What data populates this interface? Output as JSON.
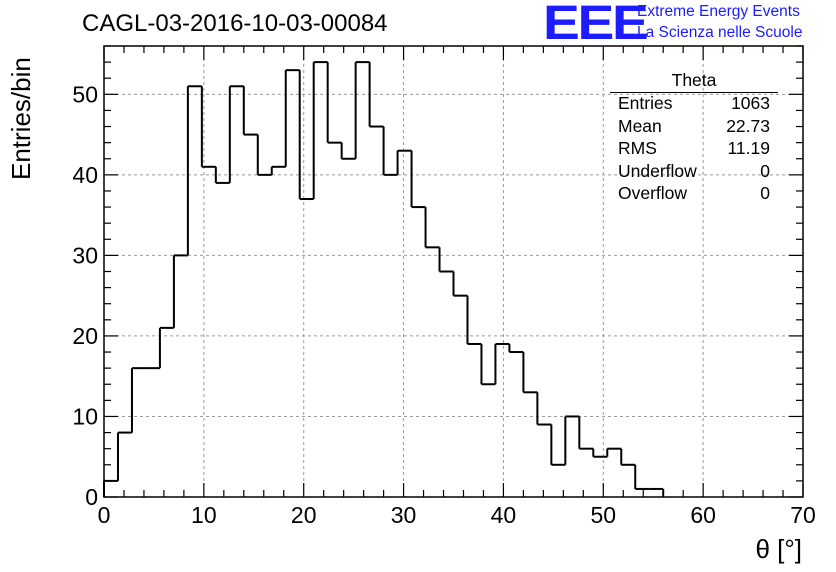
{
  "header": {
    "title": "CAGL-03-2016-10-03-00084",
    "logo_text": "EEE",
    "logo_line1": "Extreme Energy Events",
    "logo_line2": "La Scienza nelle Scuole"
  },
  "stats_box": {
    "title": "Theta",
    "rows": [
      {
        "label": "Entries",
        "value": "1063"
      },
      {
        "label": "Mean",
        "value": "22.73"
      },
      {
        "label": "RMS",
        "value": "11.19"
      },
      {
        "label": "Underflow",
        "value": "0"
      },
      {
        "label": "Overflow",
        "value": "0"
      }
    ]
  },
  "chart_data": {
    "type": "bar",
    "title": "CAGL-03-2016-10-03-00084",
    "xlabel": "θ [°]",
    "ylabel": "Entries/bin",
    "xlim": [
      0,
      70
    ],
    "ylim": [
      0,
      56
    ],
    "bin_width": 1.4,
    "grid": true,
    "x_ticks": [
      0,
      10,
      20,
      30,
      40,
      50,
      60,
      70
    ],
    "y_ticks": [
      0,
      10,
      20,
      30,
      40,
      50
    ],
    "values": [
      2,
      8,
      16,
      16,
      21,
      30,
      51,
      41,
      39,
      51,
      45,
      40,
      41,
      53,
      37,
      54,
      44,
      42,
      54,
      46,
      40,
      43,
      36,
      31,
      28,
      25,
      19,
      14,
      19,
      18,
      13,
      9,
      4,
      10,
      6,
      5,
      6,
      4,
      1,
      1,
      0,
      0,
      0,
      0,
      0,
      0,
      0,
      0,
      0,
      0
    ],
    "line_color": "#000000",
    "grid_color": "#9a9a9a"
  },
  "colors": {
    "logo": "#1c1cff",
    "text": "#000000"
  }
}
